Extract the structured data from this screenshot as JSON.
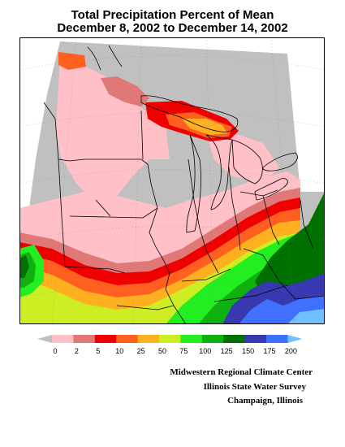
{
  "title": {
    "line1": "Total Precipitation Percent of Mean",
    "line2": "December 8, 2002 to December 14, 2002"
  },
  "legend": {
    "ticks": [
      "0",
      "2",
      "5",
      "10",
      "25",
      "50",
      "75",
      "100",
      "125",
      "150",
      "175",
      "200"
    ],
    "colors": {
      "below_0": "#c0c0c0",
      "0_2": "#ffc0c8",
      "2_5": "#e07878",
      "5_10": "#ee0000",
      "10_25": "#ff6020",
      "25_50": "#ffb020",
      "50_75": "#ccee22",
      "75_100": "#22ee22",
      "100_125": "#10b010",
      "125_150": "#007000",
      "150_175": "#3838b0",
      "175_200": "#4070ff",
      "above_200": "#70c0ff"
    }
  },
  "credits": {
    "line1": "Midwestern Regional Climate Center",
    "line2": "Illinois State Water Survey",
    "line3": "Champaign, Illinois"
  }
}
